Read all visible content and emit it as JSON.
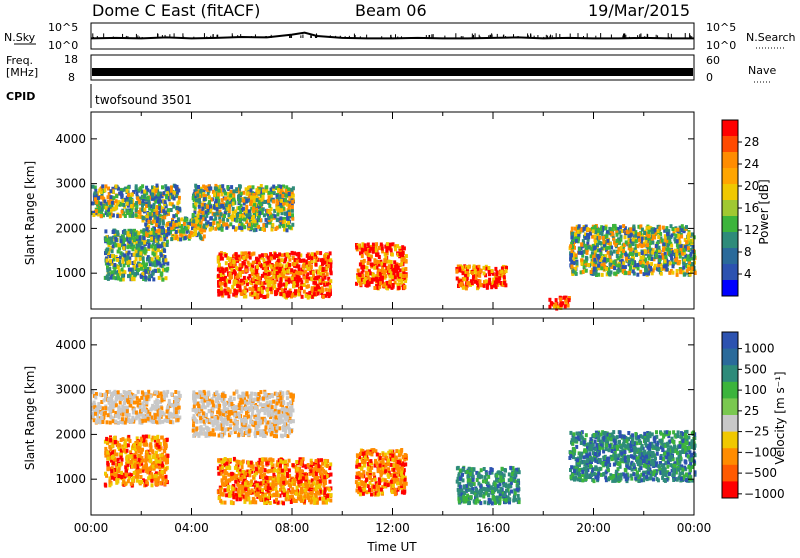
{
  "header": {
    "station": "Dome C East (fitACF)",
    "beam": "Beam 06",
    "date": "19/Mar/2015"
  },
  "colors": {
    "scale_red": "#ff0000",
    "scale_orange": "#ff8c00",
    "scale_yellow": "#f0c800",
    "scale_green": "#3cb43c",
    "scale_teal": "#2e8b7a",
    "scale_blue": "#2c52b0",
    "scale_deep_blue": "#0000ff",
    "ground_scatter": "#c8c8c8"
  },
  "chart_data": [
    {
      "type": "line",
      "panel": "nsky-nsearch",
      "left_label": "N.Sky",
      "right_label": "N.Search",
      "left_ticks": [
        "10^5",
        "10^0"
      ],
      "right_ticks": [
        "10^5",
        "10^0"
      ],
      "x": [
        0,
        1,
        2,
        3,
        4,
        5,
        6,
        7,
        8,
        8.5,
        9,
        10,
        11,
        12,
        13,
        14,
        15,
        16,
        17,
        18,
        19,
        20,
        21,
        22,
        23,
        24
      ],
      "values": [
        2,
        2.1,
        2,
        2.2,
        2,
        2.1,
        2.3,
        2.2,
        2.8,
        3.2,
        2.5,
        2.1,
        2,
        2,
        2.1,
        2,
        2,
        2.1,
        2.2,
        2,
        2.1,
        2,
        2,
        2.1,
        2,
        2
      ]
    },
    {
      "type": "line",
      "panel": "freq-nave",
      "left_label": "Freq.",
      "left_unit": "[MHz]",
      "right_label": "Nave",
      "left_ticks": [
        "18",
        "8"
      ],
      "right_ticks": [
        "60",
        "0"
      ],
      "freq_mhz": 12
    },
    {
      "type": "table",
      "panel": "cpid",
      "label": "CPID",
      "program": "twofsound 3501"
    },
    {
      "type": "heatmap",
      "panel": "power",
      "title": "",
      "xlabel": "",
      "ylabel": "Slant Range [km]",
      "xlim": [
        0,
        24
      ],
      "ylim": [
        200,
        4600
      ],
      "y_ticks": [
        "1000",
        "2000",
        "3000",
        "4000"
      ],
      "colorbar_label": "Power [dB]",
      "colorbar_ticks": [
        "4",
        "8",
        "12",
        "16",
        "20",
        "24",
        "28"
      ],
      "echo_regions": [
        {
          "t0": 0.0,
          "t1": 3.5,
          "r0": 2300,
          "r1": 3000,
          "level": "mid"
        },
        {
          "t0": 0.5,
          "t1": 3.0,
          "r0": 900,
          "r1": 2000,
          "level": "low"
        },
        {
          "t0": 2.0,
          "t1": 4.5,
          "r0": 1800,
          "r1": 2300,
          "level": "mid"
        },
        {
          "t0": 4.0,
          "t1": 8.0,
          "r0": 2000,
          "r1": 3000,
          "level": "mid"
        },
        {
          "t0": 5.0,
          "t1": 9.5,
          "r0": 500,
          "r1": 1500,
          "level": "high"
        },
        {
          "t0": 10.5,
          "t1": 12.5,
          "r0": 700,
          "r1": 1700,
          "level": "high"
        },
        {
          "t0": 14.5,
          "t1": 16.5,
          "r0": 700,
          "r1": 1200,
          "level": "high"
        },
        {
          "t0": 18.2,
          "t1": 19.0,
          "r0": 250,
          "r1": 500,
          "level": "high"
        },
        {
          "t0": 19.0,
          "t1": 24.0,
          "r0": 1000,
          "r1": 2100,
          "level": "mid"
        }
      ]
    },
    {
      "type": "heatmap",
      "panel": "velocity",
      "title": "",
      "xlabel": "Time UT",
      "ylabel": "Slant Range [km]",
      "xlim": [
        0,
        24
      ],
      "ylim": [
        200,
        4600
      ],
      "x_ticks": [
        "00:00",
        "04:00",
        "08:00",
        "12:00",
        "16:00",
        "20:00",
        "00:00"
      ],
      "y_ticks": [
        "1000",
        "2000",
        "3000",
        "4000"
      ],
      "colorbar_label": "Velocity [m s⁻¹]",
      "colorbar_ticks": [
        "1000",
        "500",
        "100",
        "25",
        "−25",
        "−100",
        "−500",
        "−1000"
      ],
      "echo_regions": [
        {
          "t0": 0.0,
          "t1": 3.5,
          "r0": 2300,
          "r1": 3000,
          "level": "ground"
        },
        {
          "t0": 0.5,
          "t1": 3.0,
          "r0": 900,
          "r1": 2000,
          "level": "neg"
        },
        {
          "t0": 4.0,
          "t1": 8.0,
          "r0": 2000,
          "r1": 3000,
          "level": "ground"
        },
        {
          "t0": 5.0,
          "t1": 9.5,
          "r0": 500,
          "r1": 1500,
          "level": "neg"
        },
        {
          "t0": 10.5,
          "t1": 12.5,
          "r0": 700,
          "r1": 1700,
          "level": "neg"
        },
        {
          "t0": 14.5,
          "t1": 17.0,
          "r0": 500,
          "r1": 1300,
          "level": "pos"
        },
        {
          "t0": 19.0,
          "t1": 24.0,
          "r0": 1000,
          "r1": 2100,
          "level": "pos"
        }
      ]
    }
  ]
}
